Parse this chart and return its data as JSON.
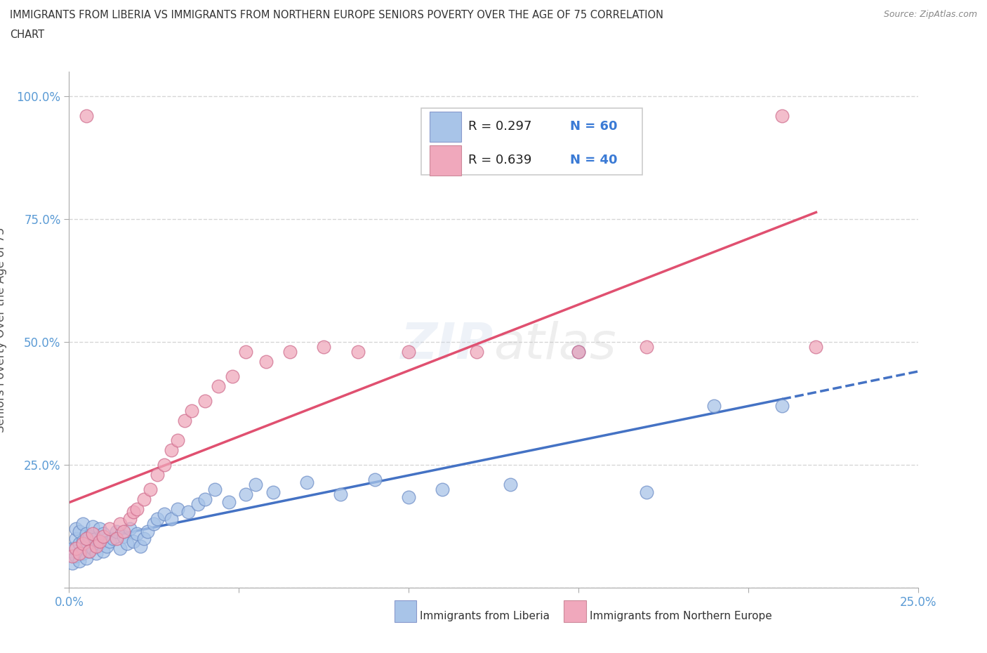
{
  "title_line1": "IMMIGRANTS FROM LIBERIA VS IMMIGRANTS FROM NORTHERN EUROPE SENIORS POVERTY OVER THE AGE OF 75 CORRELATION",
  "title_line2": "CHART",
  "source": "Source: ZipAtlas.com",
  "xlabel_liberia": "Immigrants from Liberia",
  "xlabel_northern": "Immigrants from Northern Europe",
  "ylabel": "Seniors Poverty Over the Age of 75",
  "xlim": [
    0.0,
    0.25
  ],
  "ylim": [
    0.0,
    1.05
  ],
  "blue_color": "#a8c4e8",
  "pink_color": "#f0a8bc",
  "blue_line_color": "#4472c4",
  "pink_line_color": "#e05070",
  "legend_R1": "R = 0.297",
  "legend_N1": "N = 60",
  "legend_R2": "R = 0.639",
  "legend_N2": "N = 40",
  "watermark": "ZIPatlas",
  "liberia_x": [
    0.001,
    0.001,
    0.002,
    0.002,
    0.002,
    0.003,
    0.003,
    0.003,
    0.004,
    0.004,
    0.004,
    0.005,
    0.005,
    0.005,
    0.006,
    0.006,
    0.007,
    0.007,
    0.008,
    0.008,
    0.009,
    0.009,
    0.01,
    0.01,
    0.011,
    0.012,
    0.013,
    0.014,
    0.015,
    0.016,
    0.017,
    0.018,
    0.019,
    0.02,
    0.021,
    0.022,
    0.023,
    0.025,
    0.026,
    0.028,
    0.03,
    0.032,
    0.035,
    0.038,
    0.04,
    0.043,
    0.047,
    0.052,
    0.055,
    0.06,
    0.07,
    0.08,
    0.09,
    0.1,
    0.11,
    0.13,
    0.15,
    0.17,
    0.19,
    0.21
  ],
  "liberia_y": [
    0.05,
    0.08,
    0.065,
    0.1,
    0.12,
    0.055,
    0.09,
    0.115,
    0.07,
    0.095,
    0.13,
    0.06,
    0.085,
    0.11,
    0.075,
    0.105,
    0.08,
    0.125,
    0.07,
    0.1,
    0.09,
    0.12,
    0.075,
    0.11,
    0.085,
    0.095,
    0.1,
    0.115,
    0.08,
    0.105,
    0.09,
    0.12,
    0.095,
    0.11,
    0.085,
    0.1,
    0.115,
    0.13,
    0.14,
    0.15,
    0.14,
    0.16,
    0.155,
    0.17,
    0.18,
    0.2,
    0.175,
    0.19,
    0.21,
    0.195,
    0.215,
    0.19,
    0.22,
    0.185,
    0.2,
    0.21,
    0.48,
    0.195,
    0.37,
    0.37
  ],
  "northern_x": [
    0.001,
    0.002,
    0.003,
    0.004,
    0.005,
    0.005,
    0.006,
    0.007,
    0.008,
    0.009,
    0.01,
    0.012,
    0.014,
    0.015,
    0.016,
    0.018,
    0.019,
    0.02,
    0.022,
    0.024,
    0.026,
    0.028,
    0.03,
    0.032,
    0.034,
    0.036,
    0.04,
    0.044,
    0.048,
    0.052,
    0.058,
    0.065,
    0.075,
    0.085,
    0.1,
    0.12,
    0.15,
    0.17,
    0.21,
    0.22
  ],
  "northern_y": [
    0.065,
    0.08,
    0.07,
    0.09,
    0.96,
    0.1,
    0.075,
    0.11,
    0.085,
    0.095,
    0.105,
    0.12,
    0.1,
    0.13,
    0.115,
    0.14,
    0.155,
    0.16,
    0.18,
    0.2,
    0.23,
    0.25,
    0.28,
    0.3,
    0.34,
    0.36,
    0.38,
    0.41,
    0.43,
    0.48,
    0.46,
    0.48,
    0.49,
    0.48,
    0.48,
    0.48,
    0.48,
    0.49,
    0.96,
    0.49
  ]
}
